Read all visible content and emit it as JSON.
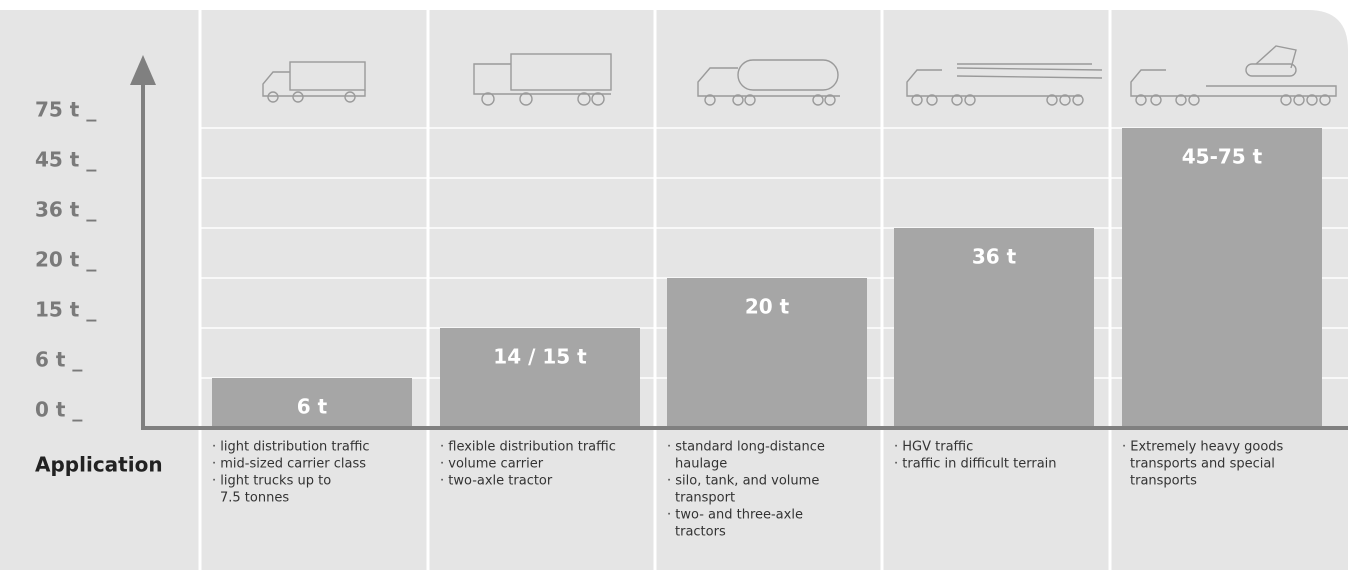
{
  "chart_data": {
    "type": "bar",
    "categories": [
      null,
      null,
      null,
      null,
      null
    ],
    "values": [
      6,
      15,
      20,
      36,
      75
    ],
    "value_labels": [
      "6  t",
      "14 / 15  t",
      "20  t",
      "36  t",
      "45-75 t"
    ],
    "color": "#a6a6a6",
    "ylim": [
      0,
      75
    ],
    "yticks": [
      {
        "value": 0,
        "label": "0 t _"
      },
      {
        "value": 6,
        "label": "6 t _"
      },
      {
        "value": 15,
        "label": "15 t _"
      },
      {
        "value": 20,
        "label": "20 t _"
      },
      {
        "value": 36,
        "label": "36 t _"
      },
      {
        "value": 45,
        "label": "45 t _"
      },
      {
        "value": 75,
        "label": "75 t _"
      }
    ],
    "grid": true,
    "application_label": "Application",
    "applications": [
      [
        [
          "· light distribution traffic"
        ],
        [
          "· mid-sized carrier class"
        ],
        [
          "· light trucks up to",
          "7.5 tonnes"
        ]
      ],
      [
        [
          "· flexible distribution traffic"
        ],
        [
          "· volume carrier"
        ],
        [
          "· two-axle tractor"
        ]
      ],
      [
        [
          "· standard long-distance",
          "haulage"
        ],
        [
          "· silo, tank, and volume",
          "transport"
        ],
        [
          "· two- and three-axle",
          "tractors"
        ]
      ],
      [
        [
          "· HGV traffic"
        ],
        [
          "· traffic in difficult terrain"
        ]
      ],
      [
        [
          "· Extremely heavy goods",
          "transports and special",
          "transports"
        ]
      ]
    ]
  }
}
